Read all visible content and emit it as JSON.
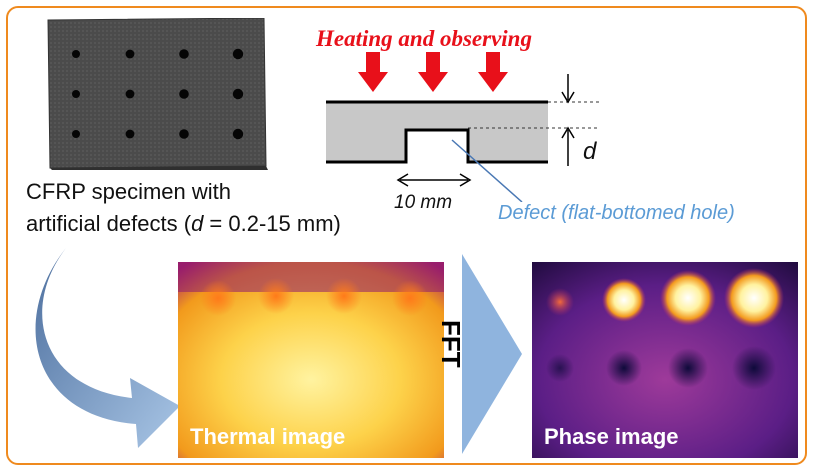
{
  "figure": {
    "heating_label": "Heating and observing",
    "specimen_caption_line1": "CFRP specimen with",
    "specimen_caption_line2_prefix": "artificial defects (",
    "specimen_caption_d": "d",
    "specimen_caption_line2_suffix": " = 0.2-15 mm)",
    "width_label": "10 mm",
    "depth_label": "d",
    "defect_label": "Defect (flat-bottomed hole)",
    "thermal_label": "Thermal image",
    "fft_label": "FFT",
    "phase_label": "Phase image"
  },
  "colors": {
    "frame": "#ef8a1e",
    "heating": "#e8101a",
    "defect_text": "#5b9bd5",
    "specimen_gray": "#4a4a4a",
    "cross_section": "#c8c8c8",
    "arrow_blue": "#8fb4de",
    "thermal_palette": "inferno-hot",
    "phase_palette": "inferno-dark"
  },
  "specimen_holes": {
    "rows": 3,
    "cols": 4
  }
}
